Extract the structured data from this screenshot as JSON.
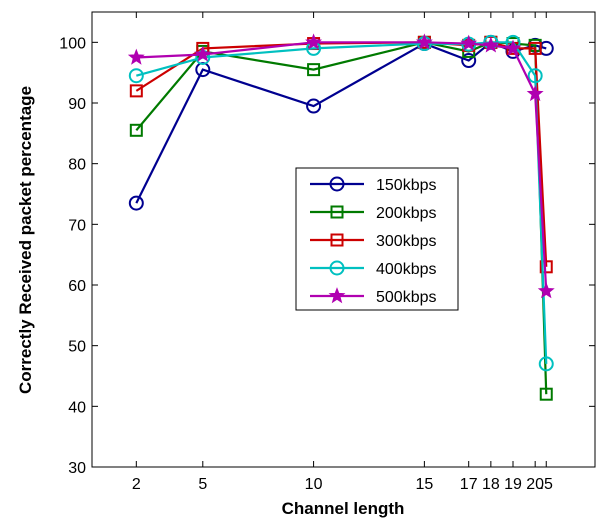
{
  "chart_data": {
    "type": "line",
    "title": "",
    "xlabel": "Channel length",
    "ylabel": "Correctly Received packet percentage",
    "x": [
      2,
      5,
      10,
      15,
      17,
      18,
      19,
      20,
      20.5
    ],
    "x_tick_labels": [
      "2",
      "5",
      "10",
      "15",
      "17",
      "18",
      "19",
      "20",
      ".5"
    ],
    "ylim": [
      30,
      105
    ],
    "y_ticks": [
      30,
      40,
      50,
      60,
      70,
      80,
      90,
      100
    ],
    "grid": false,
    "legend_position": "center-right",
    "series": [
      {
        "name": "150kbps",
        "color": "#000090",
        "marker": "circle",
        "values": [
          73.5,
          95.5,
          89.5,
          99.8,
          97.0,
          100.0,
          98.5,
          99.5,
          99.0
        ]
      },
      {
        "name": "200kbps",
        "color": "#007a00",
        "marker": "square",
        "values": [
          85.5,
          98.5,
          95.5,
          100.0,
          98.5,
          100.0,
          99.8,
          99.5,
          42.0
        ]
      },
      {
        "name": "300kbps",
        "color": "#cc0000",
        "marker": "square",
        "values": [
          92.0,
          99.0,
          99.8,
          100.0,
          99.5,
          100.0,
          99.0,
          99.0,
          63.0
        ]
      },
      {
        "name": "400kbps",
        "color": "#00c0c0",
        "marker": "circle",
        "values": [
          94.5,
          97.5,
          99.0,
          99.8,
          99.7,
          100.0,
          100.0,
          94.5,
          47.0
        ]
      },
      {
        "name": "500kbps",
        "color": "#b000b0",
        "marker": "star",
        "values": [
          97.5,
          98.0,
          100.0,
          100.0,
          99.8,
          99.5,
          99.0,
          91.5,
          59.0
        ]
      }
    ]
  }
}
